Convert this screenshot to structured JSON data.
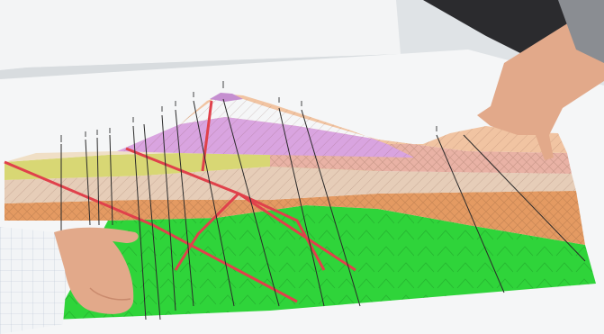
{
  "scene": {
    "description_tag": "photo",
    "layers": [
      {
        "id": "layer-green",
        "color": "#2fd43a"
      },
      {
        "id": "layer-orange",
        "color": "#e49a62"
      },
      {
        "id": "layer-tan",
        "color": "#e6cdb8"
      },
      {
        "id": "layer-yellow",
        "color": "#d8d774"
      },
      {
        "id": "layer-pink-hatch",
        "color": "#e9b2a5"
      },
      {
        "id": "layer-lilac",
        "color": "#d9a4e0"
      },
      {
        "id": "layer-peach",
        "color": "#f1c4a2"
      },
      {
        "id": "layer-mauve-peak",
        "color": "#c58fd0"
      }
    ],
    "colors": {
      "table": "#e8ebee",
      "paper": "#f6f7f8",
      "fault": "#e0414b",
      "borehole": "#2a2a2a",
      "skin": "#e2a98a",
      "sleeve": "#f2f4f6"
    }
  }
}
